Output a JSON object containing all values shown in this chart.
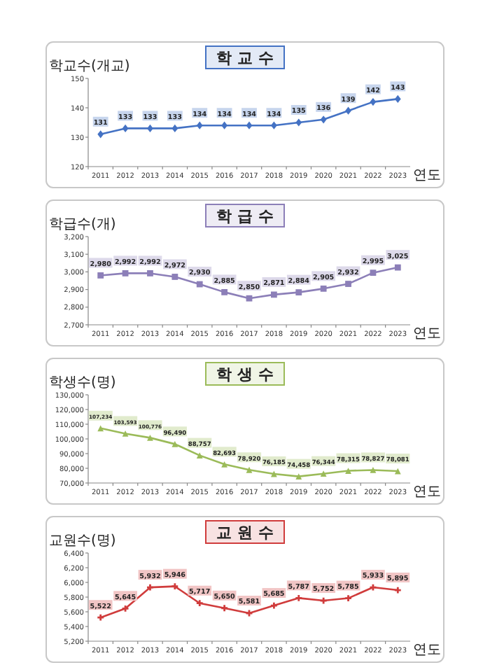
{
  "chart_data": [
    {
      "type": "line",
      "title": "학 교 수",
      "ylabel": "학교수(개교)",
      "xlabel": "연도",
      "categories": [
        "2011",
        "2012",
        "2013",
        "2014",
        "2015",
        "2016",
        "2017",
        "2018",
        "2019",
        "2020",
        "2021",
        "2022",
        "2023"
      ],
      "series": [
        {
          "color": "#4472c4",
          "values": [
            131,
            133,
            133,
            133,
            134,
            134,
            134,
            134,
            135,
            136,
            139,
            142,
            143
          ],
          "marker": "diamond"
        }
      ],
      "data_labels": true,
      "ylim": [
        120,
        150
      ],
      "yticks": [
        120,
        130,
        140,
        150
      ],
      "grid": false,
      "line_style": "solid"
    },
    {
      "type": "line",
      "title": "학 급 수",
      "ylabel": "학급수(개)",
      "xlabel": "연도",
      "categories": [
        "2011",
        "2012",
        "2013",
        "2014",
        "2015",
        "2016",
        "2017",
        "2018",
        "2019",
        "2020",
        "2021",
        "2022",
        "2023"
      ],
      "series": [
        {
          "color": "#8c7fb8",
          "values": [
            2980,
            2992,
            2992,
            2972,
            2930,
            2885,
            2850,
            2871,
            2884,
            2905,
            2932,
            2995,
            3025
          ],
          "marker": "square",
          "value_labels": [
            "2,980",
            "2,992",
            "2,992",
            "2,972",
            "2,930",
            "2,885",
            "2,850",
            "2,871",
            "2,884",
            "2,905",
            "2,932",
            "2,995",
            "3,025"
          ]
        }
      ],
      "ylim": [
        2700,
        3200
      ],
      "yticks": [
        {
          "value": 2700,
          "label": "2,700"
        },
        {
          "value": 2800,
          "label": "2,800"
        },
        {
          "value": 2900,
          "label": "2,900"
        },
        {
          "value": 3000,
          "label": "3,000"
        },
        {
          "value": 3100,
          "label": "3,100"
        },
        {
          "value": 3200,
          "label": "3,200"
        }
      ],
      "grid": false,
      "line_style": "solid"
    },
    {
      "type": "line",
      "title": "학 생 수",
      "ylabel": "학생수(명)",
      "xlabel": "연도",
      "categories": [
        "2011",
        "2012",
        "2013",
        "2014",
        "2015",
        "2016",
        "2017",
        "2018",
        "2019",
        "2020",
        "2021",
        "2022",
        "2023"
      ],
      "series": [
        {
          "color": "#9bbb59",
          "values": [
            107234,
            103593,
            100776,
            96490,
            88757,
            82693,
            78920,
            76185,
            74458,
            76344,
            78315,
            78827,
            78081
          ],
          "marker": "triangle",
          "value_labels": [
            "107,234",
            "103,593",
            "100,776",
            "96,490",
            "88,757",
            "82,693",
            "78,920",
            "76,185",
            "74,458",
            "76,344",
            "78,315",
            "78,827",
            "78,081"
          ]
        }
      ],
      "ylim": [
        70000,
        130000
      ],
      "yticks": [
        {
          "value": 70000,
          "label": "70,000"
        },
        {
          "value": 80000,
          "label": "80,000"
        },
        {
          "value": 90000,
          "label": "90,000"
        },
        {
          "value": 100000,
          "label": "100,000"
        },
        {
          "value": 110000,
          "label": "110,000"
        },
        {
          "value": 120000,
          "label": "120,000"
        },
        {
          "value": 130000,
          "label": "130,000"
        }
      ],
      "grid": false,
      "line_style": "solid"
    },
    {
      "type": "line",
      "title": "교 원 수",
      "ylabel": "교원수(명)",
      "xlabel": "연도",
      "categories": [
        "2011",
        "2012",
        "2013",
        "2014",
        "2015",
        "2016",
        "2017",
        "2018",
        "2019",
        "2020",
        "2021",
        "2022",
        "2023"
      ],
      "series": [
        {
          "color": "#d03c3c",
          "values": [
            5522,
            5645,
            5932,
            5946,
            5717,
            5650,
            5581,
            5685,
            5787,
            5752,
            5785,
            5933,
            5895
          ],
          "marker": "cross",
          "value_labels": [
            "5,522",
            "5,645",
            "5,932",
            "5,946",
            "5,717",
            "5,650",
            "5,581",
            "5,685",
            "5,787",
            "5,752",
            "5,785",
            "5,933",
            "5,895"
          ]
        }
      ],
      "ylim": [
        5200,
        6400
      ],
      "yticks": [
        {
          "value": 5200,
          "label": "5,200"
        },
        {
          "value": 5400,
          "label": "5,400"
        },
        {
          "value": 5600,
          "label": "5,600"
        },
        {
          "value": 5800,
          "label": "5,800"
        },
        {
          "value": 6000,
          "label": "6,000"
        },
        {
          "value": 6200,
          "label": "6,200"
        },
        {
          "value": 6400,
          "label": "6,400"
        }
      ],
      "grid": false,
      "line_style": "solid"
    }
  ]
}
